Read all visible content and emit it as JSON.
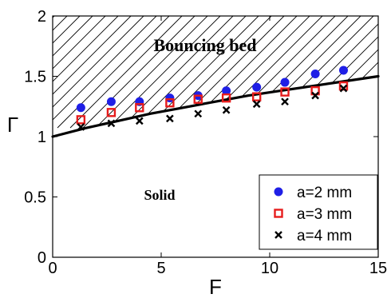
{
  "chart_data": {
    "type": "scatter",
    "xlabel": "F",
    "ylabel": "Γ",
    "xlim": [
      0,
      15
    ],
    "ylim": [
      0,
      2
    ],
    "x_ticks": [
      "0",
      "5",
      "10",
      "15"
    ],
    "y_ticks": [
      "0",
      "0.5",
      "1",
      "1.5",
      "2"
    ],
    "grid": false,
    "legend_position": "bottom-right",
    "annotations": {
      "bouncing": "Bouncing bed",
      "solid": "Solid"
    },
    "series": [
      {
        "name": "a=2 mm",
        "marker": "filled-circle",
        "color": "#1f1fe6",
        "x": [
          1.3,
          2.7,
          4.0,
          5.4,
          6.7,
          8.0,
          9.4,
          10.7,
          12.1,
          13.4
        ],
        "y": [
          1.24,
          1.29,
          1.29,
          1.32,
          1.34,
          1.38,
          1.41,
          1.45,
          1.52,
          1.55
        ]
      },
      {
        "name": "a=3 mm",
        "marker": "open-square",
        "color": "#e61c1c",
        "x": [
          1.3,
          2.7,
          4.0,
          5.4,
          6.7,
          8.0,
          9.4,
          10.7,
          12.1,
          13.4
        ],
        "y": [
          1.14,
          1.2,
          1.24,
          1.28,
          1.31,
          1.32,
          1.33,
          1.37,
          1.38,
          1.42
        ]
      },
      {
        "name": "a=4 mm",
        "marker": "x",
        "color": "#000000",
        "x": [
          1.3,
          2.7,
          4.0,
          5.4,
          6.7,
          8.0,
          9.4,
          10.7,
          12.1,
          13.4
        ],
        "y": [
          1.08,
          1.11,
          1.13,
          1.15,
          1.19,
          1.22,
          1.27,
          1.29,
          1.34,
          1.4
        ]
      }
    ],
    "boundary_curve": {
      "color": "#000000",
      "x": [
        0,
        1.5,
        3,
        4.5,
        6,
        7.5,
        9,
        10.5,
        12,
        13.5,
        15
      ],
      "y": [
        1.0,
        1.07,
        1.13,
        1.19,
        1.24,
        1.29,
        1.34,
        1.38,
        1.42,
        1.46,
        1.5
      ]
    }
  }
}
